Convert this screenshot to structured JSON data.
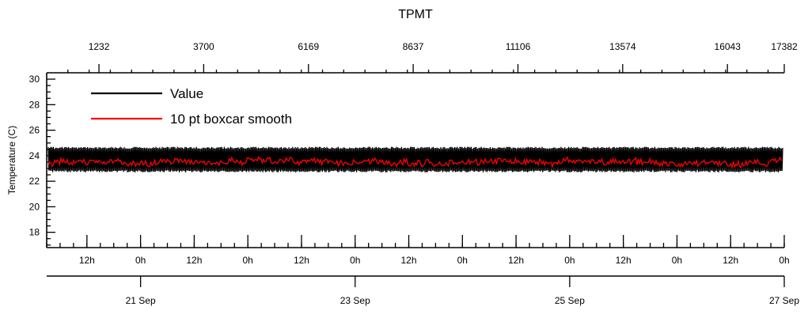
{
  "chart_data": {
    "type": "line",
    "title": "TPMT",
    "ylabel": "Temperature (C)",
    "ylim": [
      16.8,
      30.5
    ],
    "y_ticks": [
      "18",
      "20",
      "22",
      "24",
      "26",
      "28",
      "30"
    ],
    "top_axis": {
      "range": [
        0,
        17382
      ],
      "ticks": [
        "1232",
        "3700",
        "6169",
        "8637",
        "11106",
        "13574",
        "16043",
        "17382"
      ]
    },
    "x_range": [
      "2024-09-20T03:00",
      "2024-09-27T00:00"
    ],
    "bottom_hour_ticks": [
      {
        "x": "2024-09-20T12:00",
        "label": "12h"
      },
      {
        "x": "2024-09-21T00:00",
        "label": "0h"
      },
      {
        "x": "2024-09-21T12:00",
        "label": "12h"
      },
      {
        "x": "2024-09-22T00:00",
        "label": "0h"
      },
      {
        "x": "2024-09-22T12:00",
        "label": "12h"
      },
      {
        "x": "2024-09-23T00:00",
        "label": "0h"
      },
      {
        "x": "2024-09-23T12:00",
        "label": "12h"
      },
      {
        "x": "2024-09-24T00:00",
        "label": "0h"
      },
      {
        "x": "2024-09-24T12:00",
        "label": "12h"
      },
      {
        "x": "2024-09-25T00:00",
        "label": "0h"
      },
      {
        "x": "2024-09-25T12:00",
        "label": "12h"
      },
      {
        "x": "2024-09-26T00:00",
        "label": "0h"
      },
      {
        "x": "2024-09-26T12:00",
        "label": "12h"
      },
      {
        "x": "2024-09-27T00:00",
        "label": "0h"
      }
    ],
    "bottom_date_ticks": [
      {
        "x": "2024-09-21T00:00",
        "label": "21 Sep"
      },
      {
        "x": "2024-09-23T00:00",
        "label": "23 Sep"
      },
      {
        "x": "2024-09-25T00:00",
        "label": "25 Sep"
      },
      {
        "x": "2024-09-27T00:00",
        "label": "27 Sep"
      }
    ],
    "series": [
      {
        "name": "Value",
        "color": "#000000",
        "mean": 23.6,
        "min": 22.7,
        "max": 24.7
      },
      {
        "name": "10 pt boxcar smooth",
        "color": "#ff0000",
        "mean": 23.5,
        "min": 22.9,
        "max": 24.1
      }
    ],
    "grid": false,
    "legend_position": "top-left"
  }
}
